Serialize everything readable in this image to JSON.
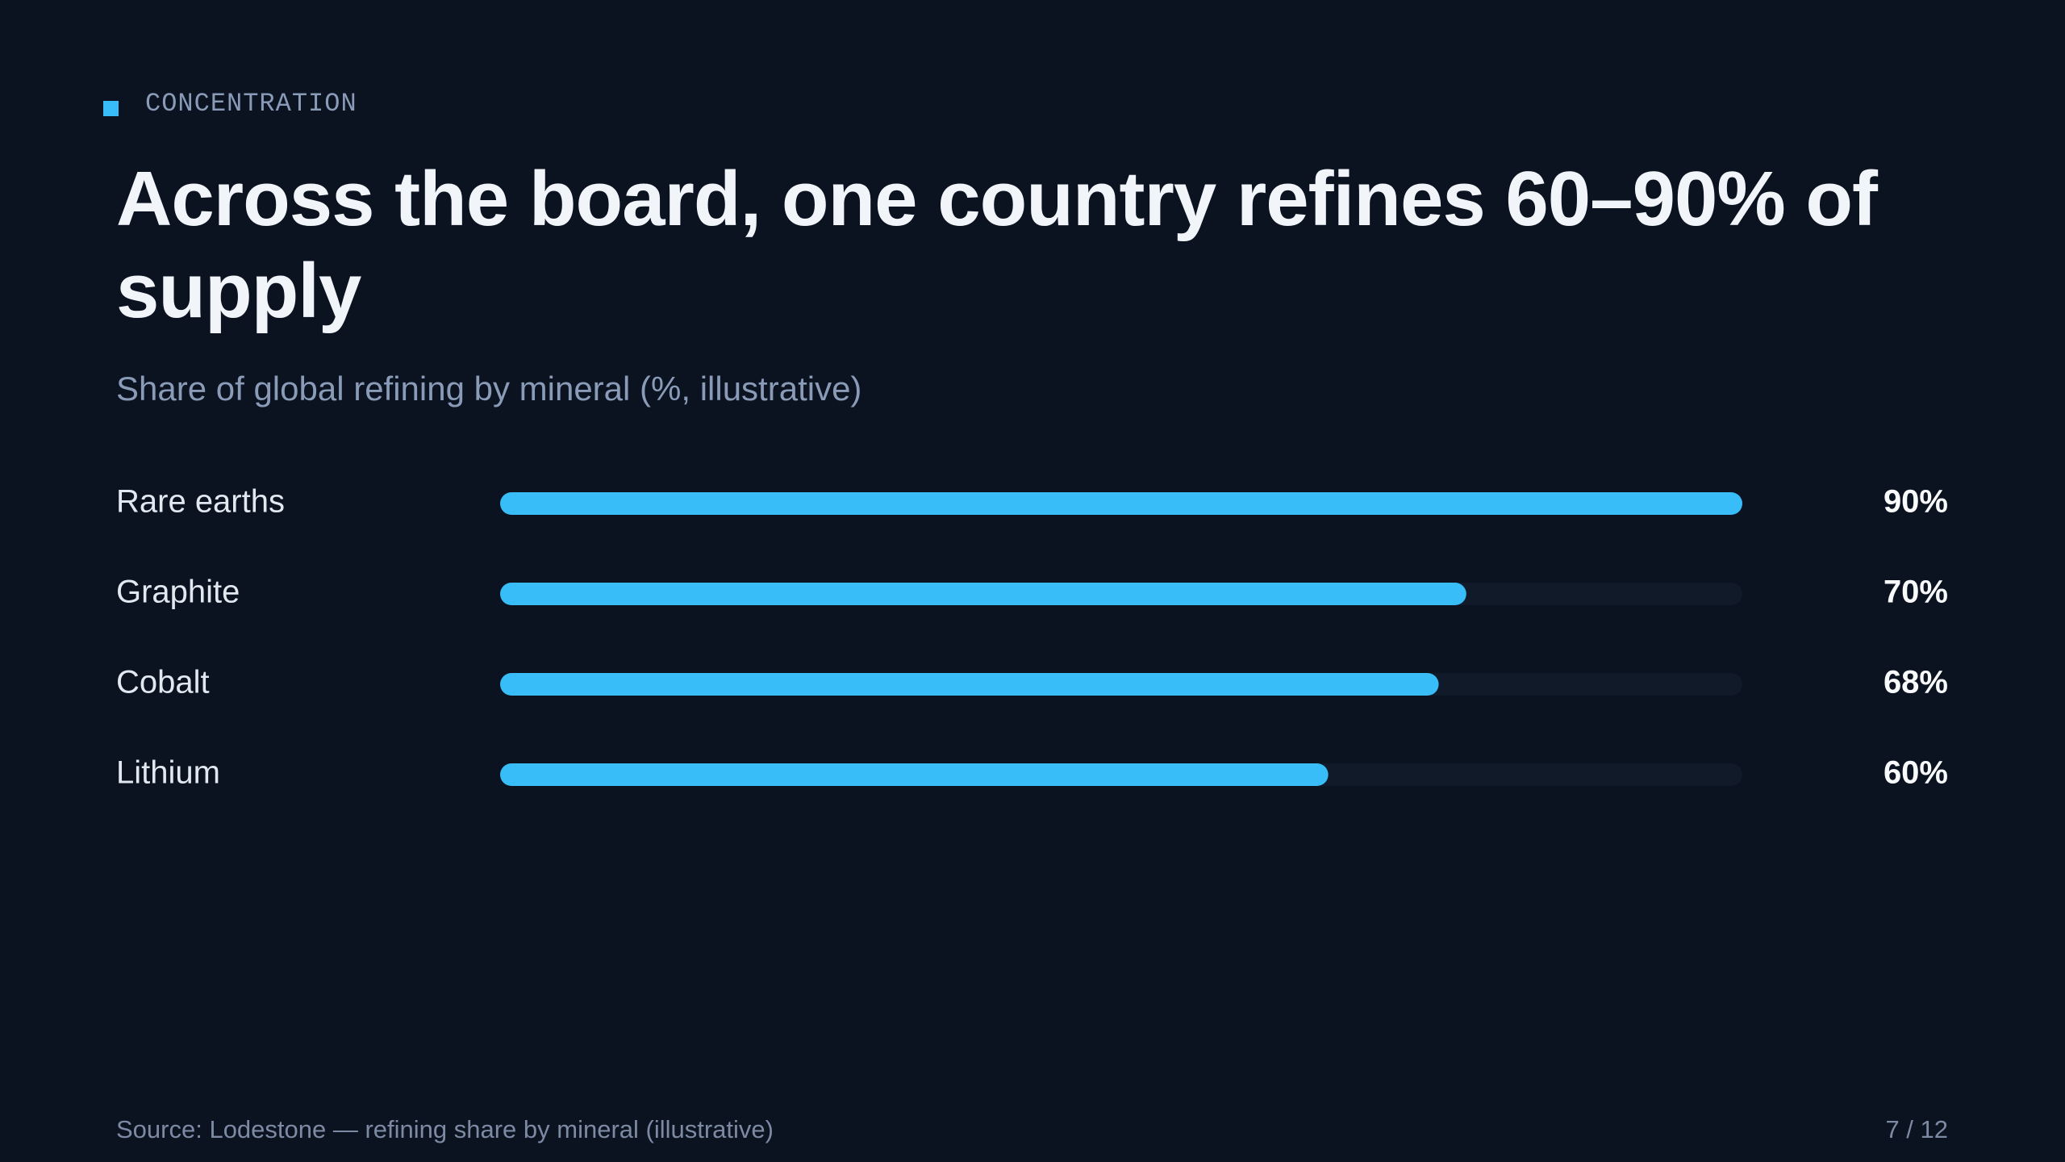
{
  "eyebrow": "CONCENTRATION",
  "chart_data": {
    "type": "bar",
    "orientation": "horizontal",
    "title": "Across the board, one country refines 60–90% of supply",
    "subtitle": "Share of global refining by mineral (%, illustrative)",
    "categories": [
      "Rare earths",
      "Graphite",
      "Cobalt",
      "Lithium"
    ],
    "values": [
      90,
      70,
      68,
      60
    ],
    "value_labels": [
      "90%",
      "70%",
      "68%",
      "60%"
    ],
    "color": "#38bdf8",
    "xlim": [
      0,
      90
    ]
  },
  "footer": {
    "source": "Source: Lodestone — refining share by mineral (illustrative)",
    "page": "7 / 12"
  }
}
